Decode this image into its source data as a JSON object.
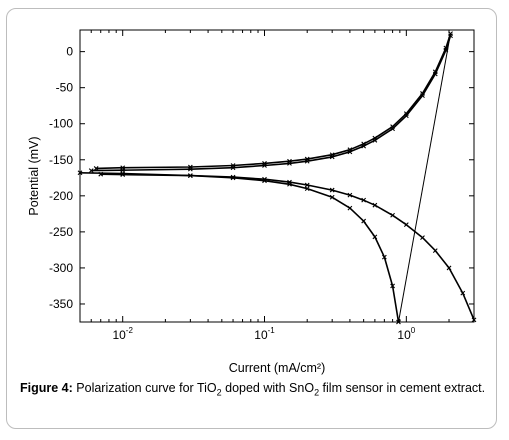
{
  "caption": {
    "label": "Figure 4:",
    "text_parts": [
      "Polarization curve for TiO",
      "2",
      " doped with SnO",
      "2",
      " film sensor in cement extract."
    ]
  },
  "chart_data": {
    "type": "line",
    "xlabel": "Current (mA/cm²)",
    "ylabel": "Potential (mV)",
    "x_scale": "log",
    "xlim": [
      0.005,
      3.0
    ],
    "ylim": [
      -375,
      30
    ],
    "x_ticks": [
      {
        "value": 0.01,
        "label_base": "10",
        "label_exp": "-2"
      },
      {
        "value": 0.1,
        "label_base": "10",
        "label_exp": "-1"
      },
      {
        "value": 1,
        "label_base": "10",
        "label_exp": "0"
      }
    ],
    "y_ticks": [
      0,
      -50,
      -100,
      -150,
      -200,
      -250,
      -300,
      -350
    ],
    "series": [
      {
        "style": "markers-line",
        "x": [
          0.0065,
          0.01,
          0.03,
          0.06,
          0.1,
          0.15,
          0.2,
          0.3,
          0.4,
          0.5,
          0.6,
          0.8,
          1.0,
          1.3,
          1.6,
          1.9,
          2.05
        ],
        "y": [
          -162,
          -161,
          -160,
          -158,
          -155,
          -152,
          -149,
          -143,
          -136,
          -128,
          -120,
          -104,
          -86,
          -58,
          -28,
          5,
          25
        ]
      },
      {
        "style": "markers-line",
        "x": [
          0.006,
          0.01,
          0.03,
          0.06,
          0.1,
          0.15,
          0.2,
          0.3,
          0.4,
          0.5,
          0.6,
          0.8,
          1.0,
          1.3,
          1.6,
          1.9,
          2.05
        ],
        "y": [
          -165,
          -164.5,
          -163,
          -161,
          -158,
          -155,
          -152,
          -146,
          -139,
          -131,
          -123,
          -107,
          -89,
          -61,
          -31,
          2,
          22
        ]
      },
      {
        "style": "markers-line",
        "x": [
          0.005,
          0.01,
          0.03,
          0.06,
          0.1,
          0.15,
          0.2,
          0.3,
          0.4,
          0.5,
          0.6,
          0.7,
          0.8,
          0.88
        ],
        "y": [
          -168,
          -169,
          -172,
          -175,
          -179,
          -184,
          -190,
          -202,
          -217,
          -235,
          -257,
          -285,
          -325,
          -375
        ]
      },
      {
        "style": "markers-line",
        "x": [
          0.007,
          0.01,
          0.03,
          0.06,
          0.1,
          0.15,
          0.2,
          0.3,
          0.4,
          0.5,
          0.6,
          0.8,
          1.0,
          1.3,
          1.6,
          2.0,
          2.5,
          3.0
        ],
        "y": [
          -170,
          -170.5,
          -172,
          -174,
          -177,
          -181,
          -185,
          -192,
          -199,
          -206,
          -213,
          -227,
          -240,
          -258,
          -276,
          -300,
          -335,
          -372
        ]
      },
      {
        "style": "thin-line",
        "x": [
          0.88,
          2.05
        ],
        "y": [
          -375,
          25
        ]
      }
    ]
  }
}
